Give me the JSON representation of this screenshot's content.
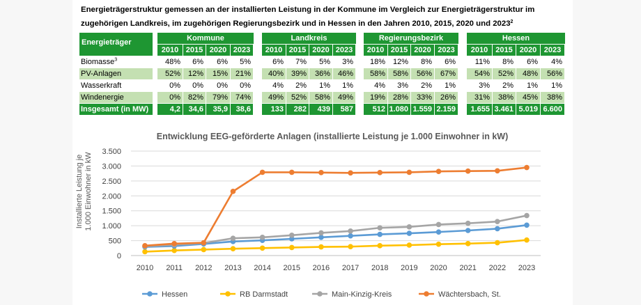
{
  "heading": {
    "line1": "Energieträgerstruktur gemessen an der installierten Leistung in der Kommune im Vergleich zur Energieträgerstruktur im",
    "line2": "zugehörigen Landkreis, im zugehörigen Regierungsbezirk und in Hessen in den Jahren 2010, 2015, 2020 und 2023",
    "footnote": "2"
  },
  "table": {
    "energy_header": "Energieträger",
    "groups": [
      {
        "name": "Kommune",
        "years": [
          "2010",
          "2015",
          "2020",
          "2023"
        ]
      },
      {
        "name": "Landkreis",
        "years": [
          "2010",
          "2015",
          "2020",
          "2023"
        ]
      },
      {
        "name": "Regierungsbezirk",
        "years": [
          "2010",
          "2015",
          "2020",
          "2023"
        ]
      },
      {
        "name": "Hessen",
        "years": [
          "2010",
          "2015",
          "2020",
          "2023"
        ]
      }
    ],
    "rows": [
      {
        "label": "Biomasse",
        "sup": "3",
        "values": [
          [
            "48%",
            "6%",
            "6%",
            "5%"
          ],
          [
            "6%",
            "7%",
            "5%",
            "3%"
          ],
          [
            "18%",
            "12%",
            "8%",
            "6%"
          ],
          [
            "11%",
            "8%",
            "6%",
            "4%"
          ]
        ]
      },
      {
        "label": "PV-Anlagen",
        "sup": "",
        "values": [
          [
            "52%",
            "12%",
            "15%",
            "21%"
          ],
          [
            "40%",
            "39%",
            "36%",
            "46%"
          ],
          [
            "58%",
            "58%",
            "56%",
            "67%"
          ],
          [
            "54%",
            "52%",
            "48%",
            "56%"
          ]
        ]
      },
      {
        "label": "Wasserkraft",
        "sup": "",
        "values": [
          [
            "0%",
            "0%",
            "0%",
            "0%"
          ],
          [
            "4%",
            "2%",
            "1%",
            "1%"
          ],
          [
            "4%",
            "3%",
            "2%",
            "1%"
          ],
          [
            "3%",
            "2%",
            "1%",
            "1%"
          ]
        ]
      },
      {
        "label": "Windenergie",
        "sup": "",
        "values": [
          [
            "0%",
            "82%",
            "79%",
            "74%"
          ],
          [
            "49%",
            "52%",
            "58%",
            "49%"
          ],
          [
            "19%",
            "28%",
            "33%",
            "26%"
          ],
          [
            "31%",
            "38%",
            "45%",
            "38%"
          ]
        ]
      },
      {
        "label": "Insgesamt (in MW)",
        "sup": "",
        "values": [
          [
            "4,2",
            "34,6",
            "35,9",
            "38,6"
          ],
          [
            "133",
            "282",
            "439",
            "587"
          ],
          [
            "512",
            "1.080",
            "1.559",
            "2.159"
          ],
          [
            "1.655",
            "3.461",
            "5.019",
            "6.600"
          ]
        ]
      }
    ]
  },
  "chart_data": {
    "type": "line",
    "title": "Entwicklung EEG-geförderte Anlagen (installierte Leistung je 1.000 Einwohner in kW)",
    "ylabel_line1": "Installierte Leistung je",
    "ylabel_line2": "1.000 Einwohner in kW",
    "xlabel": "",
    "x": [
      "2010",
      "2011",
      "2012",
      "2013",
      "2014",
      "2015",
      "2016",
      "2017",
      "2018",
      "2019",
      "2020",
      "2021",
      "2022",
      "2023"
    ],
    "ylim": [
      0,
      3500
    ],
    "yticks": [
      0,
      500,
      1000,
      1500,
      2000,
      2500,
      3000,
      3500
    ],
    "ytick_labels": [
      "0",
      "500",
      "1.000",
      "1.500",
      "2.000",
      "2.500",
      "3.000",
      "3.500"
    ],
    "grid": true,
    "legend_position": "bottom",
    "series": [
      {
        "name": "Hessen",
        "color": "#5b9bd5",
        "values": [
          290,
          320,
          390,
          470,
          510,
          560,
          610,
          660,
          710,
          745,
          790,
          840,
          900,
          1020
        ]
      },
      {
        "name": "RB Darmstadt",
        "color": "#ffc000",
        "values": [
          130,
          170,
          200,
          230,
          250,
          270,
          290,
          300,
          330,
          350,
          380,
          400,
          430,
          520
        ]
      },
      {
        "name": "Main-Kinzig-Kreis",
        "color": "#a5a5a5",
        "values": [
          310,
          360,
          420,
          580,
          610,
          680,
          760,
          820,
          930,
          960,
          1040,
          1080,
          1140,
          1340
        ]
      },
      {
        "name": "Wächtersbach, St.",
        "color": "#ed7d31",
        "values": [
          330,
          400,
          430,
          2150,
          2790,
          2790,
          2780,
          2770,
          2780,
          2790,
          2820,
          2830,
          2840,
          2950
        ]
      }
    ]
  }
}
